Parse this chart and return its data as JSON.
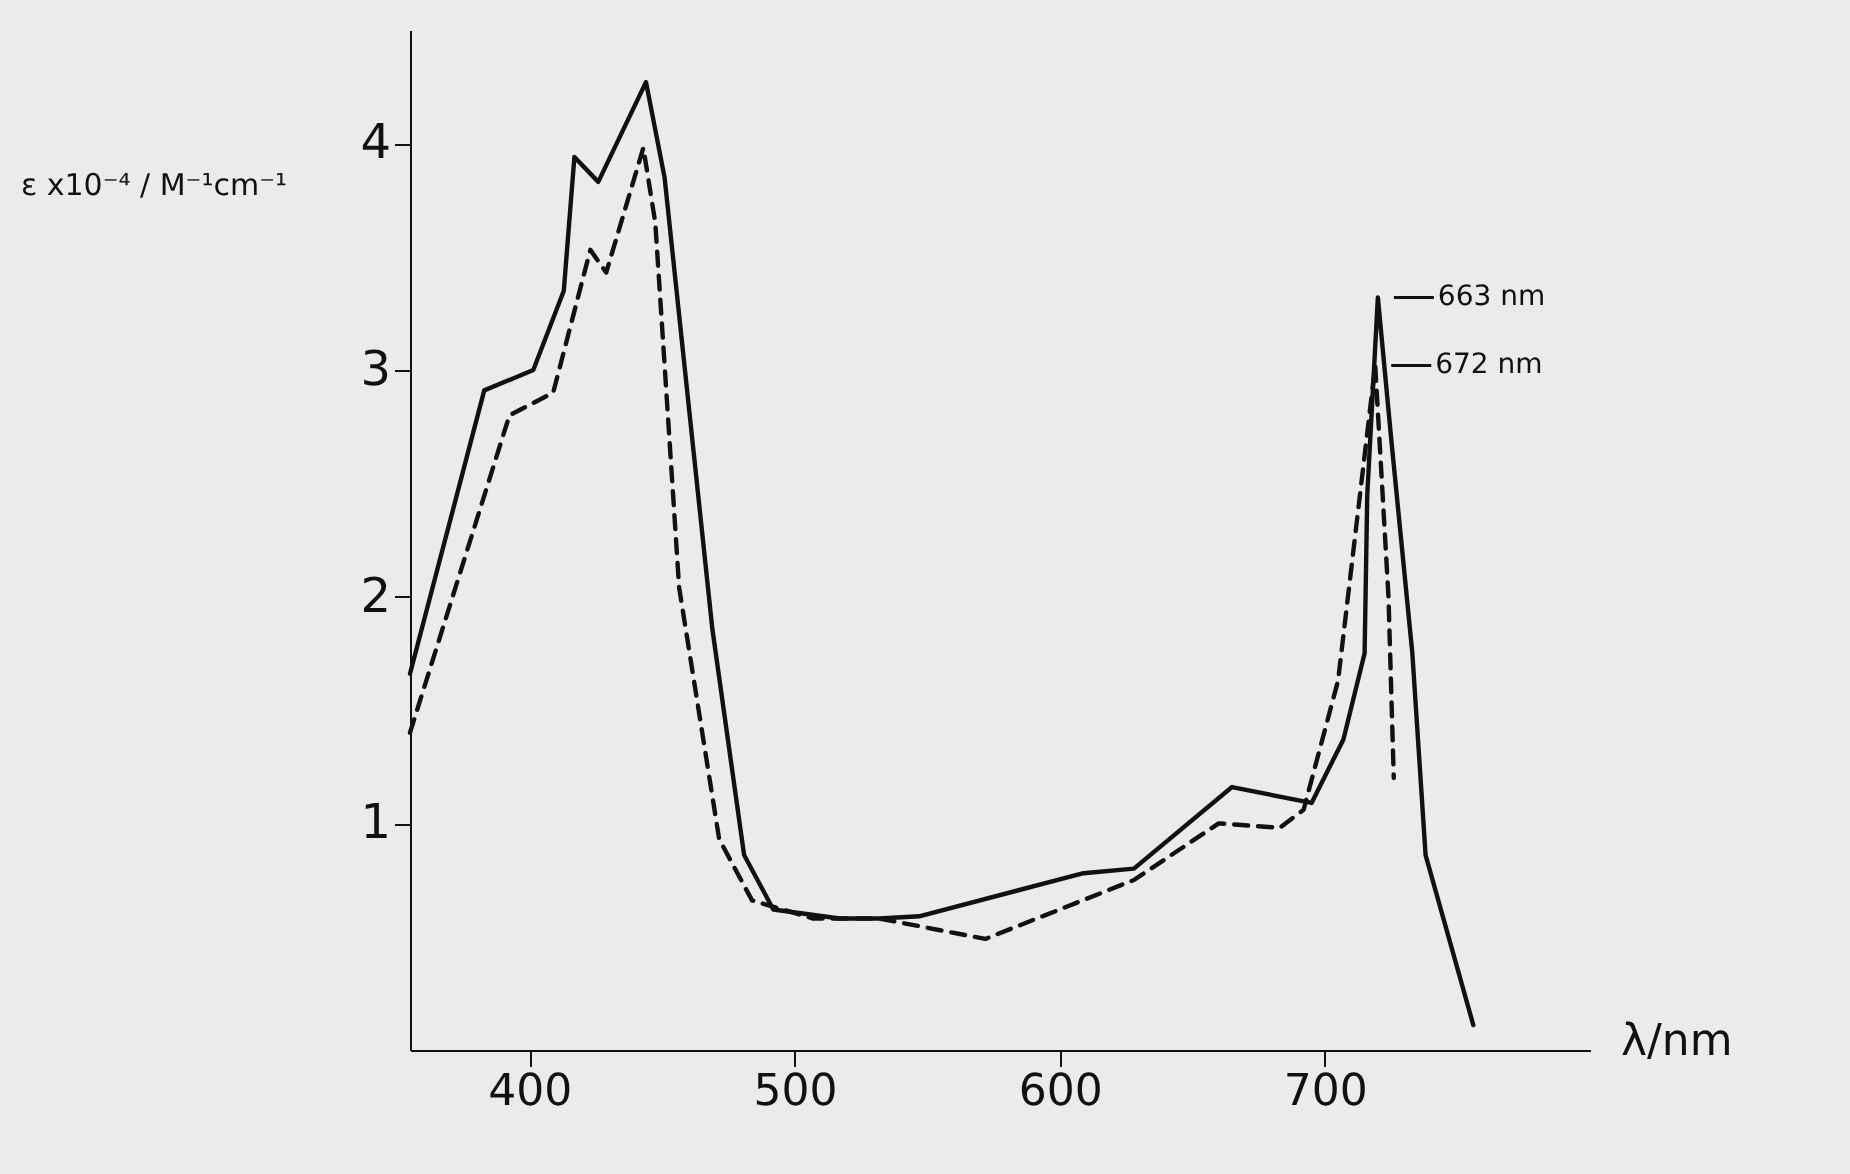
{
  "chart_data": {
    "type": "line",
    "xlabel": "λ/nm",
    "ylabel": "ε x10⁻⁴ / M⁻¹cm⁻¹",
    "xlim": [
      355,
      800
    ],
    "ylim": [
      0,
      4.5
    ],
    "xticks": [
      400,
      500,
      600,
      700
    ],
    "yticks": [
      1,
      2,
      3,
      4
    ],
    "grid": false,
    "marker": "none",
    "series": [
      {
        "color": "#111111",
        "line_style": "solid",
        "x": [
          355,
          383,
          401.5,
          413,
          417,
          426,
          444,
          451,
          469,
          481,
          492,
          517,
          532,
          547,
          609,
          628,
          665,
          695,
          707,
          715,
          716,
          720,
          725,
          733,
          738,
          756
        ],
        "values": [
          1.66,
          2.91,
          3.0,
          3.35,
          3.94,
          3.83,
          4.27,
          3.85,
          1.86,
          0.86,
          0.62,
          0.58,
          0.58,
          0.59,
          0.78,
          0.8,
          1.16,
          1.09,
          1.37,
          1.75,
          2.45,
          3.32,
          2.7,
          1.75,
          0.86,
          0.11
        ]
      },
      {
        "color": "#111111",
        "line_style": "dashed",
        "x": [
          355,
          392.5,
          409,
          423,
          429,
          443,
          447.5,
          456.5,
          471.6,
          484,
          507,
          532,
          572,
          628,
          660,
          683,
          692,
          705,
          719,
          724,
          726
        ],
        "values": [
          1.4,
          2.8,
          2.9,
          3.53,
          3.43,
          3.98,
          3.65,
          2.04,
          0.93,
          0.66,
          0.58,
          0.58,
          0.49,
          0.75,
          1.0,
          0.98,
          1.06,
          1.63,
          3.02,
          2.0,
          1.2
        ]
      }
    ],
    "annotations": [
      {
        "text": "663 nm",
        "x": 720,
        "y": 3.32
      },
      {
        "text": "672 nm",
        "x": 719,
        "y": 3.02
      }
    ]
  }
}
